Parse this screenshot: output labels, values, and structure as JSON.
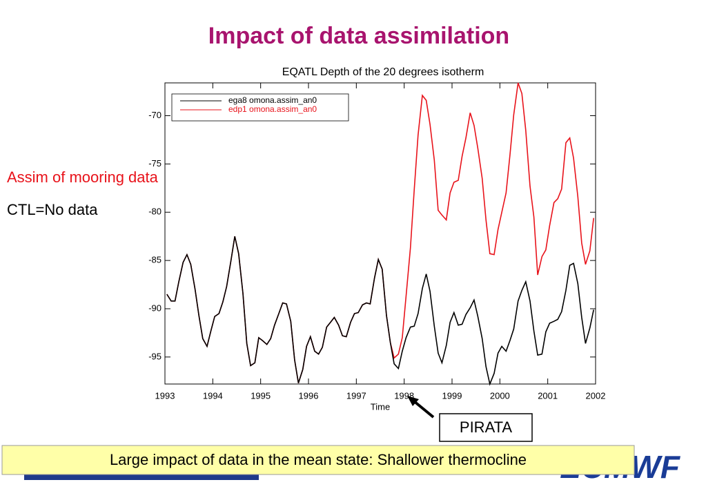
{
  "slide": {
    "title": "Impact of data assimilation",
    "note_assim": "Assim of mooring data",
    "note_ctl": "CTL=No data",
    "callout": "PIRATA",
    "conclusion": "Large impact of data in the mean state: Shallower thermocline",
    "logo": "ECMWF"
  },
  "chart_data": {
    "type": "line",
    "title": "EQATL Depth of the 20 degrees isotherm",
    "xlabel": "Time",
    "xlim": [
      1993,
      2002
    ],
    "xticks": [
      1993,
      1994,
      1995,
      1996,
      1997,
      1998,
      1999,
      2000,
      2001,
      2002
    ],
    "ylim": [
      -97.8,
      -66.6
    ],
    "yticks": [
      -95,
      -90,
      -85,
      -80,
      -75,
      -70
    ],
    "grid": false,
    "legend": "upper left",
    "x": [
      1993.04,
      1993.13,
      1993.21,
      1993.29,
      1993.38,
      1993.46,
      1993.54,
      1993.63,
      1993.71,
      1993.79,
      1993.88,
      1993.96,
      1994.04,
      1994.13,
      1994.21,
      1994.29,
      1994.38,
      1994.46,
      1994.54,
      1994.63,
      1994.71,
      1994.79,
      1994.88,
      1994.96,
      1995.04,
      1995.13,
      1995.21,
      1995.29,
      1995.38,
      1995.46,
      1995.54,
      1995.63,
      1995.71,
      1995.79,
      1995.88,
      1995.96,
      1996.04,
      1996.13,
      1996.21,
      1996.29,
      1996.38,
      1996.46,
      1996.54,
      1996.63,
      1996.71,
      1996.79,
      1996.88,
      1996.96,
      1997.04,
      1997.13,
      1997.21,
      1997.29,
      1997.38,
      1997.46,
      1997.54,
      1997.63,
      1997.71,
      1997.79,
      1997.88,
      1997.96,
      1998.04,
      1998.13,
      1998.21,
      1998.29,
      1998.38,
      1998.46,
      1998.54,
      1998.63,
      1998.71,
      1998.79,
      1998.88,
      1998.96,
      1999.04,
      1999.13,
      1999.21,
      1999.29,
      1999.38,
      1999.46,
      1999.54,
      1999.63,
      1999.71,
      1999.79,
      1999.88,
      1999.96,
      2000.04,
      2000.13,
      2000.21,
      2000.29,
      2000.38,
      2000.46,
      2000.54,
      2000.63,
      2000.71,
      2000.79,
      2000.88,
      2000.96,
      2001.04,
      2001.13,
      2001.21,
      2001.29,
      2001.38,
      2001.46,
      2001.54,
      2001.63,
      2001.71,
      2001.79,
      2001.88,
      2001.96
    ],
    "series": [
      {
        "name": "ega8 omona.assim_an0",
        "color": "#000000",
        "values": [
          -88.5,
          -89.2,
          -89.2,
          -87.2,
          -85.2,
          -84.4,
          -85.4,
          -88.0,
          -90.7,
          -93.1,
          -93.9,
          -92.3,
          -90.8,
          -90.5,
          -89.3,
          -87.7,
          -85.0,
          -82.5,
          -84.3,
          -88.4,
          -93.6,
          -95.9,
          -95.6,
          -93.0,
          -93.3,
          -93.7,
          -93.1,
          -91.7,
          -90.5,
          -89.4,
          -89.5,
          -91.3,
          -95.3,
          -97.7,
          -96.3,
          -93.9,
          -92.9,
          -94.4,
          -94.7,
          -94.0,
          -91.9,
          -91.4,
          -90.9,
          -91.7,
          -92.8,
          -92.9,
          -91.4,
          -90.5,
          -90.4,
          -89.6,
          -89.4,
          -89.5,
          -86.8,
          -84.9,
          -85.9,
          -90.7,
          -93.5,
          -95.7,
          -96.2,
          -94.4,
          -93.0,
          -91.9,
          -91.8,
          -90.5,
          -87.9,
          -86.4,
          -88.2,
          -91.8,
          -94.6,
          -95.6,
          -93.8,
          -91.4,
          -90.4,
          -91.7,
          -91.6,
          -90.6,
          -89.9,
          -89.1,
          -90.8,
          -93.1,
          -96.0,
          -97.8,
          -96.7,
          -94.6,
          -93.9,
          -94.4,
          -93.3,
          -92.1,
          -89.2,
          -88.1,
          -87.2,
          -89.2,
          -92.3,
          -94.8,
          -94.7,
          -92.4,
          -91.5,
          -91.3,
          -91.1,
          -90.3,
          -88.1,
          -85.5,
          -85.3,
          -87.4,
          -90.9,
          -93.6,
          -92.0,
          -90.1
        ]
      },
      {
        "name": "edp1 omona.assim_an0",
        "color": "#e8121a",
        "values": [
          -88.5,
          -89.2,
          -89.2,
          -87.2,
          -85.2,
          -84.4,
          -85.4,
          -88.0,
          -90.7,
          -93.1,
          -93.9,
          -92.3,
          -90.8,
          -90.5,
          -89.3,
          -87.7,
          -85.0,
          -82.5,
          -84.3,
          -88.4,
          -93.6,
          -95.9,
          -95.6,
          -93.0,
          -93.3,
          -93.7,
          -93.1,
          -91.7,
          -90.5,
          -89.4,
          -89.5,
          -91.3,
          -95.3,
          -97.7,
          -96.3,
          -93.9,
          -92.9,
          -94.4,
          -94.7,
          -94.0,
          -91.9,
          -91.4,
          -90.9,
          -91.7,
          -92.8,
          -92.9,
          -91.4,
          -90.5,
          -90.4,
          -89.6,
          -89.4,
          -89.5,
          -86.8,
          -84.9,
          -85.9,
          -90.7,
          -93.5,
          -95.1,
          -94.7,
          -93.0,
          -88.7,
          -83.7,
          -77.7,
          -72.0,
          -67.9,
          -68.4,
          -70.9,
          -74.6,
          -79.8,
          -80.3,
          -80.8,
          -78.0,
          -76.9,
          -76.7,
          -74.2,
          -72.3,
          -69.7,
          -71.0,
          -73.4,
          -76.5,
          -80.8,
          -84.3,
          -84.4,
          -81.8,
          -80.0,
          -78.0,
          -74.1,
          -69.9,
          -66.6,
          -67.7,
          -71.5,
          -77.3,
          -80.5,
          -86.5,
          -84.6,
          -83.9,
          -81.4,
          -79.0,
          -78.6,
          -77.6,
          -72.8,
          -72.3,
          -74.4,
          -78.4,
          -83.2,
          -85.4,
          -84.0,
          -80.6
        ]
      }
    ]
  }
}
